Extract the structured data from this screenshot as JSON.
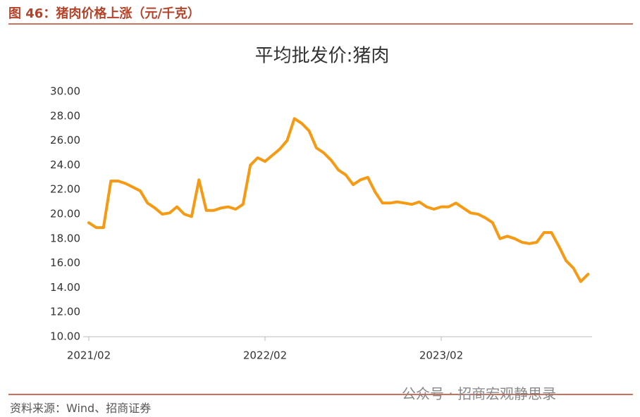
{
  "header": {
    "title": "图 46：猪肉价格上涨（元/千克）"
  },
  "chart_data": {
    "type": "line",
    "title": "平均批发价:猪肉",
    "categories": [
      "2021/02",
      null,
      null,
      null,
      null,
      null,
      null,
      null,
      null,
      null,
      null,
      null,
      null,
      null,
      null,
      null,
      null,
      null,
      null,
      null,
      null,
      null,
      null,
      null,
      "2022/02",
      null,
      null,
      null,
      null,
      null,
      null,
      null,
      null,
      null,
      null,
      null,
      null,
      null,
      null,
      null,
      null,
      null,
      null,
      null,
      null,
      null,
      null,
      null,
      "2023/02",
      null,
      null,
      null,
      null,
      null,
      null,
      null,
      null,
      null,
      null,
      null,
      null,
      null,
      null,
      null,
      null,
      null,
      null,
      null,
      null
    ],
    "series": [
      {
        "name": "平均批发价:猪肉",
        "color": "#f59a12",
        "values": [
          19.3,
          18.9,
          18.9,
          22.7,
          22.7,
          22.5,
          22.2,
          21.9,
          20.9,
          20.5,
          20.0,
          20.1,
          20.6,
          20.0,
          19.8,
          22.8,
          20.3,
          20.3,
          20.5,
          20.6,
          20.4,
          20.8,
          24.0,
          24.6,
          24.3,
          24.8,
          25.3,
          26.0,
          27.8,
          27.4,
          26.8,
          25.4,
          25.0,
          24.4,
          23.6,
          23.2,
          22.4,
          22.8,
          23.0,
          21.8,
          20.9,
          20.9,
          21.0,
          20.9,
          20.8,
          21.0,
          20.6,
          20.4,
          20.6,
          20.6,
          20.9,
          20.5,
          20.1,
          20.0,
          19.7,
          19.3,
          18.0,
          18.2,
          18.0,
          17.7,
          17.6,
          17.7,
          18.5,
          18.5,
          17.4,
          16.2,
          15.6,
          14.5,
          15.1
        ]
      }
    ],
    "ylim": [
      10,
      30
    ],
    "yticks": [
      {
        "value": 10,
        "label": "10.00"
      },
      {
        "value": 12,
        "label": "12.00"
      },
      {
        "value": 14,
        "label": "14.00"
      },
      {
        "value": 16,
        "label": "16.00"
      },
      {
        "value": 18,
        "label": "18.00"
      },
      {
        "value": 20,
        "label": "20.00"
      },
      {
        "value": 22,
        "label": "22.00"
      },
      {
        "value": 24,
        "label": "24.00"
      },
      {
        "value": 26,
        "label": "26.00"
      },
      {
        "value": 28,
        "label": "28.00"
      },
      {
        "value": 30,
        "label": "30.00"
      }
    ],
    "grid": false
  },
  "footer": {
    "source": "资料来源：Wind、招商证券",
    "watermark": "公众号 · 招商宏观静思录"
  }
}
